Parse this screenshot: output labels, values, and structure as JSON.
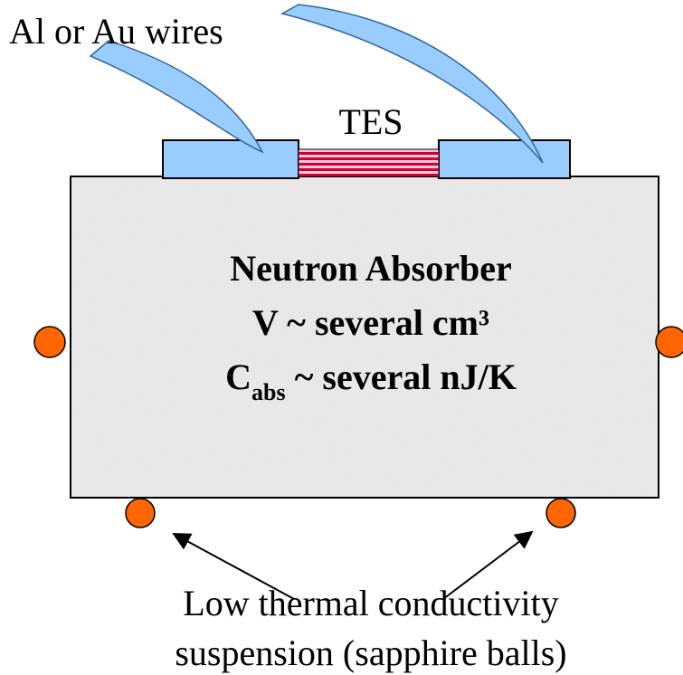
{
  "labels": {
    "wires": "Al or Au wires",
    "tes": "TES",
    "absorber": {
      "title": "Neutron Absorber",
      "volume": "V ~ several cm³",
      "capacity_symbol": "C",
      "capacity_subscript": "abs",
      "capacity_rest": " ~ several nJ/K"
    },
    "suspension": [
      "Low thermal conductivity",
      "suspension (sapphire balls)"
    ]
  }
}
